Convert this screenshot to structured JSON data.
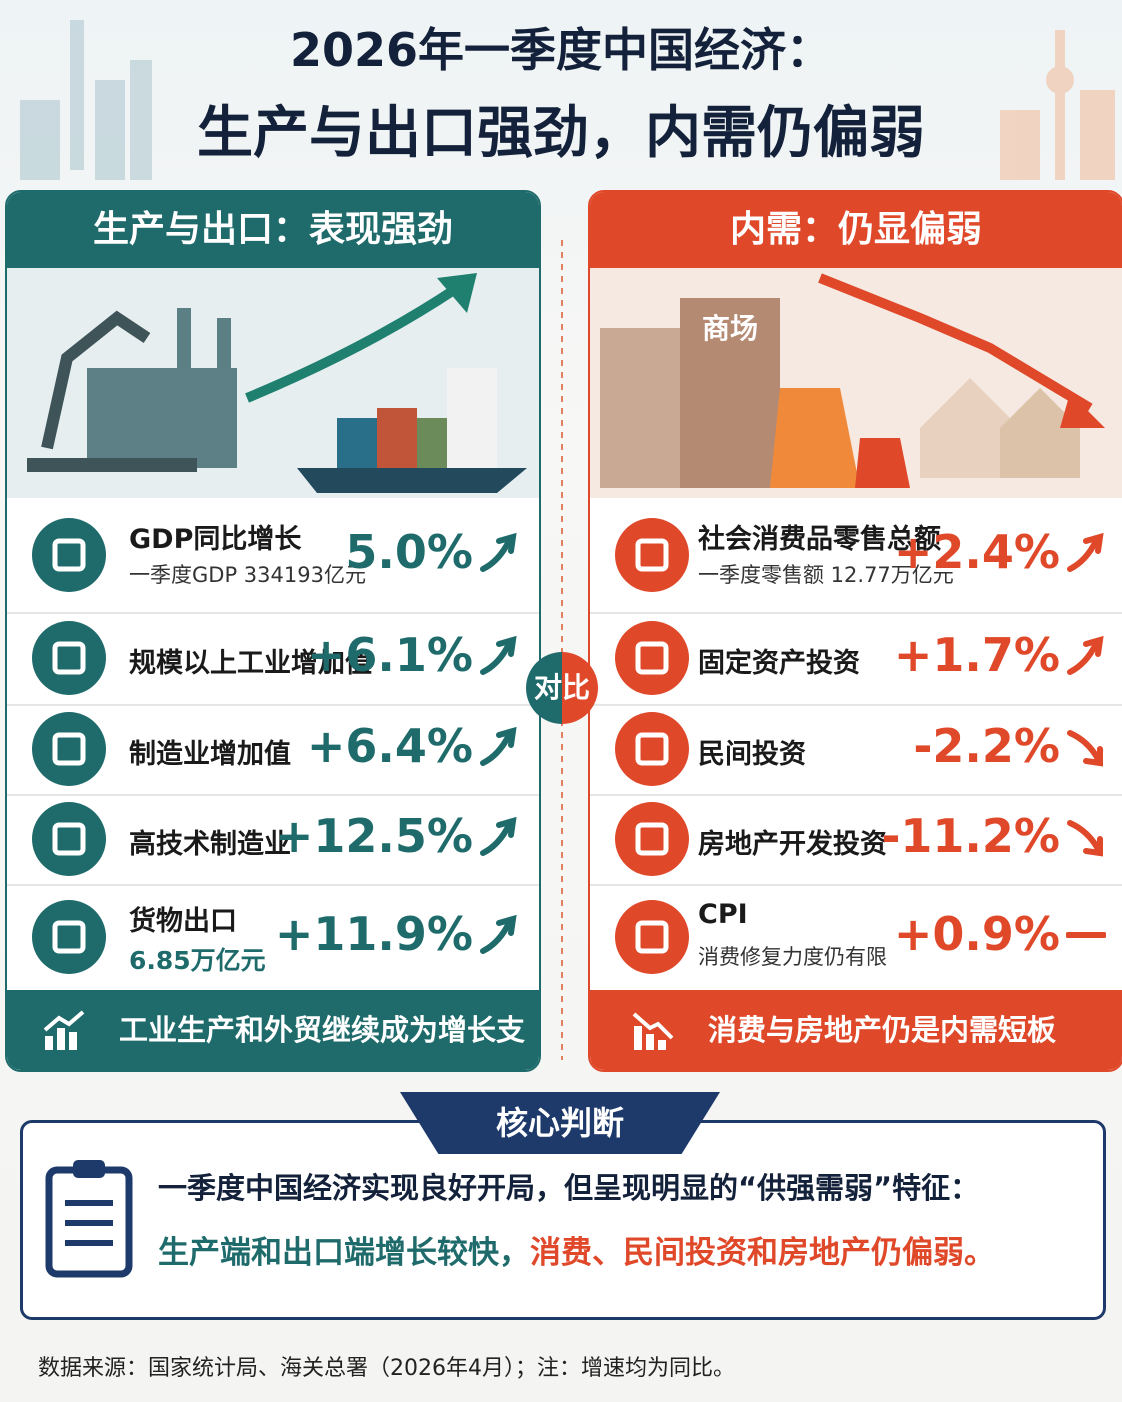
{
  "title": {
    "line1": "2026年一季度中国经济：",
    "line2": "生产与出口强劲，内需仍偏弱"
  },
  "left_panel": {
    "header": "生产与出口：表现强劲",
    "items": [
      {
        "label": "GDP同比增长",
        "value": "5.0%",
        "note": "一季度GDP 334193亿元",
        "trend": "up"
      },
      {
        "label": "规模以上工业增加值",
        "value": "+6.1%",
        "trend": "up"
      },
      {
        "label": "制造业增加值",
        "value": "+6.4%",
        "trend": "up"
      },
      {
        "label": "高技术制造业",
        "value": "+12.5%",
        "trend": "up"
      },
      {
        "label": "货物出口",
        "value": "+11.9%",
        "note": "6.85万亿元",
        "trend": "up"
      }
    ],
    "footer": "工业生产和外贸继续成为增长支撑"
  },
  "right_panel": {
    "header": "内需：仍显偏弱",
    "sign": "商场",
    "items": [
      {
        "label": "社会消费品零售总额",
        "value": "+2.4%",
        "note": "一季度零售额 12.77万亿元",
        "trend": "up"
      },
      {
        "label": "固定资产投资",
        "value": "+1.7%",
        "trend": "up"
      },
      {
        "label": "民间投资",
        "value": "-2.2%",
        "trend": "down"
      },
      {
        "label": "房地产开发投资",
        "value": "-11.2%",
        "trend": "down"
      },
      {
        "label": "CPI",
        "value": "+0.9%",
        "note": "消费修复力度仍有限",
        "trend": "flat"
      }
    ],
    "footer": "消费与房地产仍是内需短板"
  },
  "comparison_label": "对比",
  "conclusion": {
    "tag": "核心判断",
    "line1": "一季度中国经济实现良好开局，但呈现明显的“供强需弱”特征：",
    "line2_green": "生产端和出口端增长较快，",
    "line2_red": "消费、民间投资和房地产仍偏弱。"
  },
  "source": "数据来源：国家统计局、海关总署（2026年4月）；注：增速均为同比。"
}
